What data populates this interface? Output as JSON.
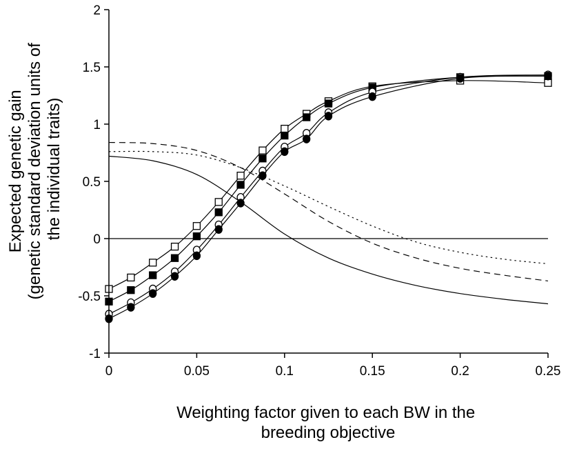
{
  "chart_data": {
    "type": "line",
    "title": "",
    "xlabel": [
      "Weighting factor given to each BW in the",
      "breeding objective"
    ],
    "ylabel": [
      "Expected genetic gain",
      "(genetic standard deviation units of",
      "the individual traits)"
    ],
    "xlim": [
      0,
      0.25
    ],
    "ylim": [
      -1,
      2
    ],
    "xticks": [
      0,
      0.05,
      0.1,
      0.15,
      0.2,
      0.25
    ],
    "xtick_labels": [
      "0",
      "0.05",
      "0.1",
      "0.15",
      "0.2",
      "0.25"
    ],
    "yticks": [
      -1,
      -0.5,
      0,
      0.5,
      1,
      1.5,
      2
    ],
    "ytick_labels": [
      "-1",
      "-0.5",
      "0",
      "0.5",
      "1",
      "1.5",
      "2"
    ],
    "grid": false,
    "legend": "none",
    "series": [
      {
        "marker": "open-square",
        "line": "solid",
        "x": [
          0,
          0.0125,
          0.025,
          0.0375,
          0.05,
          0.0625,
          0.075,
          0.0875,
          0.1,
          0.1125,
          0.125,
          0.15,
          0.2,
          0.25
        ],
        "y": [
          -0.44,
          -0.34,
          -0.21,
          -0.07,
          0.11,
          0.32,
          0.55,
          0.77,
          0.96,
          1.09,
          1.2,
          1.33,
          1.38,
          1.36
        ]
      },
      {
        "marker": "filled-square",
        "line": "solid",
        "x": [
          0,
          0.0125,
          0.025,
          0.0375,
          0.05,
          0.0625,
          0.075,
          0.0875,
          0.1,
          0.1125,
          0.125,
          0.15,
          0.2,
          0.25
        ],
        "y": [
          -0.55,
          -0.45,
          -0.32,
          -0.17,
          0.02,
          0.23,
          0.47,
          0.7,
          0.9,
          1.06,
          1.18,
          1.32,
          1.41,
          1.42
        ]
      },
      {
        "marker": "open-circle",
        "line": "solid",
        "x": [
          0,
          0.0125,
          0.025,
          0.0375,
          0.05,
          0.0625,
          0.075,
          0.0875,
          0.1,
          0.1125,
          0.125,
          0.15,
          0.2,
          0.25
        ],
        "y": [
          -0.66,
          -0.56,
          -0.44,
          -0.29,
          -0.1,
          0.12,
          0.36,
          0.59,
          0.8,
          0.92,
          1.1,
          1.28,
          1.41,
          1.43
        ]
      },
      {
        "marker": "filled-circle",
        "line": "solid",
        "x": [
          0,
          0.0125,
          0.025,
          0.0375,
          0.05,
          0.0625,
          0.075,
          0.0875,
          0.1,
          0.1125,
          0.125,
          0.15,
          0.2,
          0.25
        ],
        "y": [
          -0.7,
          -0.6,
          -0.48,
          -0.33,
          -0.15,
          0.08,
          0.31,
          0.55,
          0.76,
          0.87,
          1.07,
          1.24,
          1.4,
          1.42
        ]
      },
      {
        "marker": "none",
        "line": "solid",
        "x": [
          0,
          0.025,
          0.05,
          0.075,
          0.1,
          0.125,
          0.15,
          0.175,
          0.2,
          0.225,
          0.25
        ],
        "y": [
          0.72,
          0.68,
          0.56,
          0.32,
          0.04,
          -0.17,
          -0.31,
          -0.41,
          -0.48,
          -0.53,
          -0.57
        ]
      },
      {
        "marker": "none",
        "line": "dashed",
        "x": [
          0,
          0.025,
          0.05,
          0.075,
          0.1,
          0.125,
          0.15,
          0.175,
          0.2,
          0.225,
          0.25
        ],
        "y": [
          0.84,
          0.83,
          0.77,
          0.62,
          0.39,
          0.15,
          -0.04,
          -0.17,
          -0.26,
          -0.32,
          -0.37
        ]
      },
      {
        "marker": "none",
        "line": "dotted",
        "x": [
          0,
          0.025,
          0.05,
          0.075,
          0.1,
          0.125,
          0.15,
          0.175,
          0.2,
          0.225,
          0.25
        ],
        "y": [
          0.76,
          0.76,
          0.73,
          0.62,
          0.46,
          0.28,
          0.11,
          -0.03,
          -0.12,
          -0.18,
          -0.22
        ]
      },
      {
        "marker": "none",
        "line": "solid",
        "x": [
          0,
          0.25
        ],
        "y": [
          0,
          0
        ]
      }
    ]
  }
}
